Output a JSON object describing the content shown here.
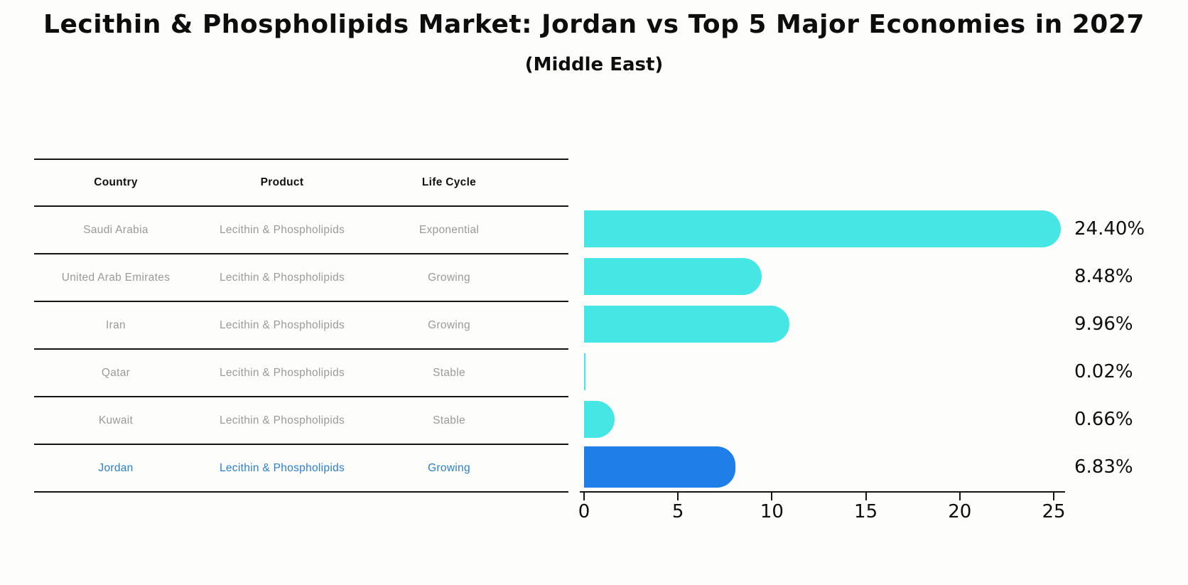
{
  "header": {
    "title": "Lecithin & Phospholipids Market: Jordan vs Top 5 Major Economies in 2027",
    "subtitle": "(Middle East)"
  },
  "table": {
    "columns": [
      "Country",
      "Product",
      "Life Cycle"
    ],
    "rows": [
      {
        "country": "Saudi Arabia",
        "product": "Lecithin & Phospholipids",
        "life_cycle": "Exponential"
      },
      {
        "country": "United Arab Emirates",
        "product": "Lecithin & Phospholipids",
        "life_cycle": "Growing"
      },
      {
        "country": "Iran",
        "product": "Lecithin & Phospholipids",
        "life_cycle": "Growing"
      },
      {
        "country": "Qatar",
        "product": "Lecithin & Phospholipids",
        "life_cycle": "Stable"
      },
      {
        "country": "Kuwait",
        "product": "Lecithin & Phospholipids",
        "life_cycle": "Stable"
      },
      {
        "country": "Jordan",
        "product": "Lecithin & Phospholipids",
        "life_cycle": "Growing"
      }
    ]
  },
  "chart_data": {
    "type": "bar",
    "orientation": "horizontal",
    "title": "Lecithin & Phospholipids Market: Jordan vs Top 5 Major Economies in 2027",
    "subtitle": "(Middle East)",
    "categories": [
      "Saudi Arabia",
      "United Arab Emirates",
      "Iran",
      "Qatar",
      "Kuwait",
      "Jordan"
    ],
    "values": [
      24.4,
      8.48,
      9.96,
      0.02,
      0.66,
      6.83
    ],
    "value_labels": [
      "24.40%",
      "8.48%",
      "9.96%",
      "0.02%",
      "0.66%",
      "6.83%"
    ],
    "x_ticks": [
      0,
      5,
      10,
      15,
      20,
      25
    ],
    "xlim": [
      0,
      25.5
    ],
    "xlabel": "",
    "ylabel": "",
    "grid": false,
    "legend": "none",
    "bar_color": "#45e6e4",
    "highlight_color": "#1f7ee8",
    "highlight_index": 5,
    "highlight_text_color": "#2b7fd0",
    "axis_color": "#141414"
  }
}
